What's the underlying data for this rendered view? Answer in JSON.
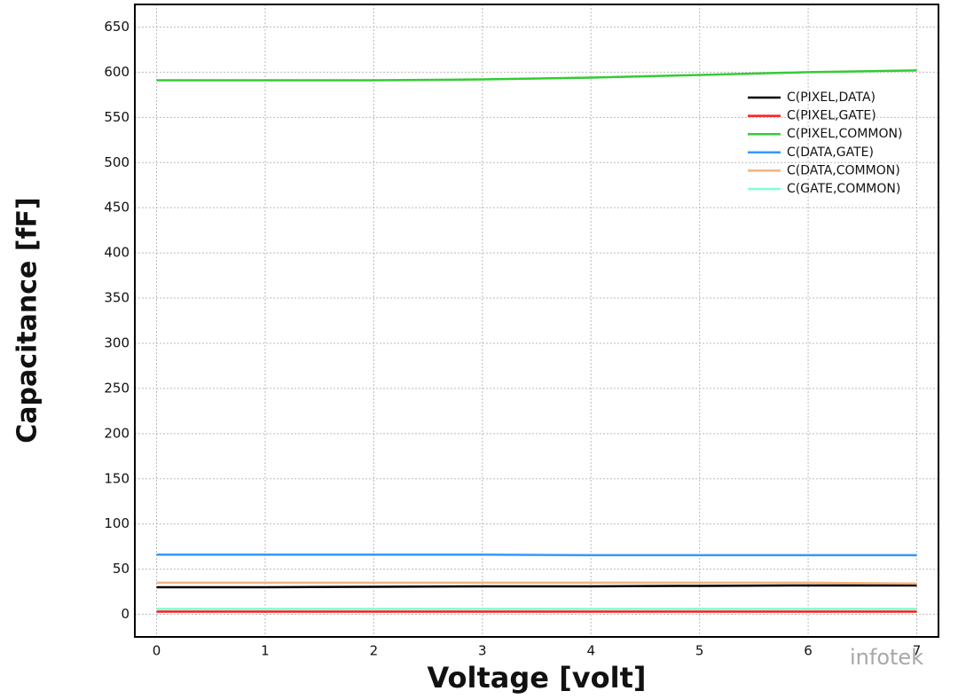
{
  "chart_data": {
    "type": "line",
    "xlabel": "Voltage [volt]",
    "ylabel": "Capacitance [fF]",
    "x": [
      0,
      1,
      2,
      3,
      4,
      5,
      6,
      7
    ],
    "series": [
      {
        "name": "C(PIXEL,DATA)",
        "color": "#000000",
        "values": [
          30,
          30,
          30.5,
          31,
          31,
          31.5,
          32,
          32
        ]
      },
      {
        "name": "C(PIXEL,GATE)",
        "color": "#ff1a1a",
        "values": [
          3,
          3,
          3,
          3,
          3,
          3,
          3,
          3
        ]
      },
      {
        "name": "C(PIXEL,COMMON)",
        "color": "#33cc33",
        "values": [
          591,
          591,
          591,
          592,
          594,
          597,
          600,
          602
        ]
      },
      {
        "name": "C(DATA,GATE)",
        "color": "#3399ff",
        "values": [
          66,
          66,
          66,
          66,
          65.5,
          65.5,
          65.5,
          65.5
        ]
      },
      {
        "name": "C(DATA,COMMON)",
        "color": "#f5b27a",
        "values": [
          35,
          35,
          35,
          35,
          35,
          35,
          35,
          34
        ]
      },
      {
        "name": "C(GATE,COMMON)",
        "color": "#7fffd4",
        "values": [
          6,
          6,
          6,
          6,
          6,
          6,
          6,
          6
        ]
      }
    ],
    "xlim": [
      -0.2,
      7.2
    ],
    "ylim": [
      -25,
      675
    ],
    "xticks": [
      0,
      1,
      2,
      3,
      4,
      5,
      6,
      7
    ],
    "yticks": [
      0,
      50,
      100,
      150,
      200,
      250,
      300,
      350,
      400,
      450,
      500,
      550,
      600,
      650
    ],
    "grid": true,
    "legend": "upper right",
    "watermark": "infotek"
  }
}
